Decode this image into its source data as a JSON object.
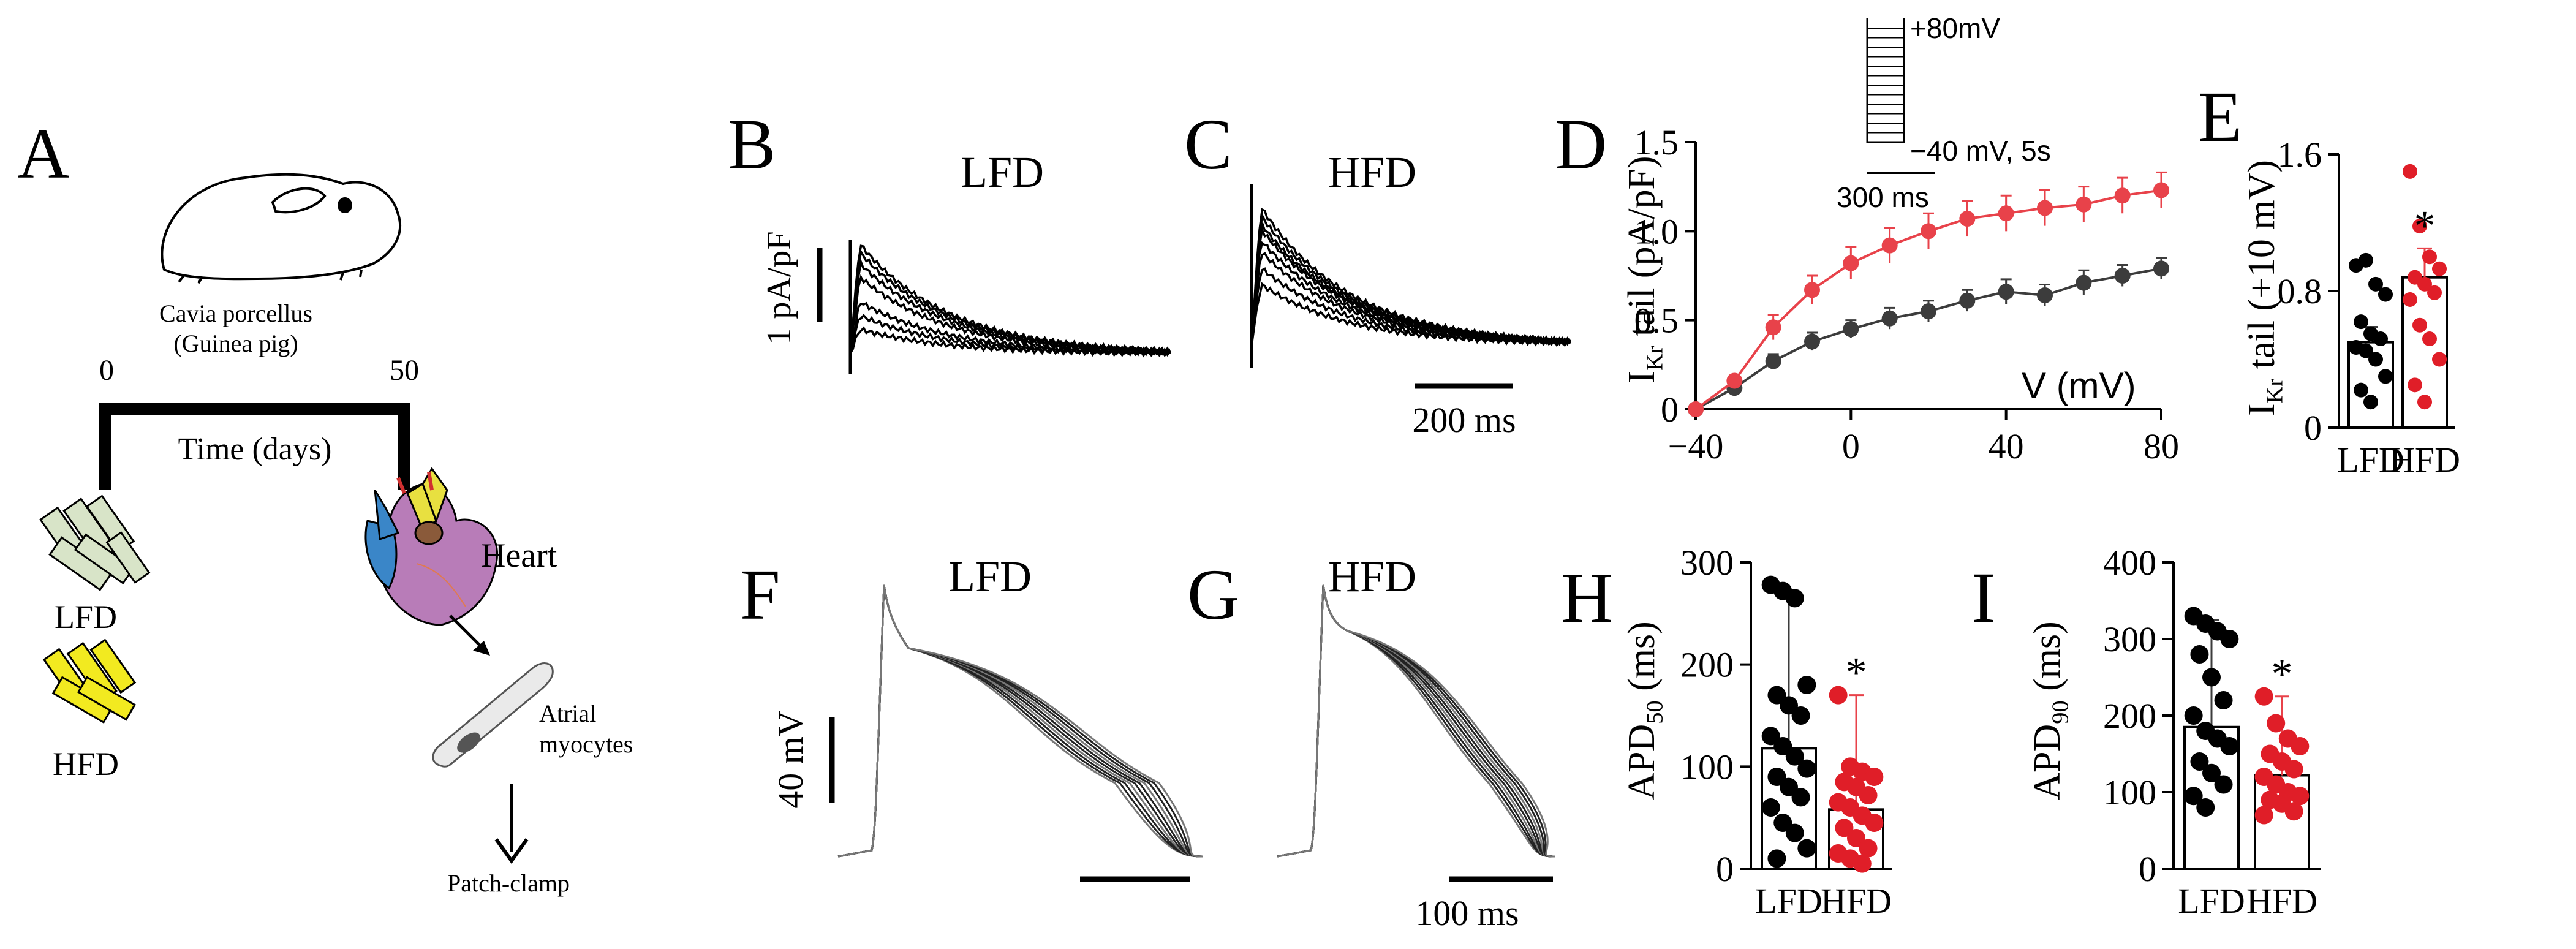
{
  "panel_a": {
    "letter": "A",
    "species_name": "Cavia porcellus",
    "species_common": "(Guinea pig)",
    "timeline_start": "0",
    "timeline_end": "50",
    "timeline_label": "Time (days)",
    "diet_low": "LFD",
    "diet_high": "HFD",
    "heart_label": "Heart",
    "cell_label_line1": "Atrial",
    "cell_label_line2": "myocytes",
    "method_label": "Patch-clamp",
    "colors": {
      "heart_blue": "#3a86c8",
      "heart_yellow": "#e8e040",
      "heart_pink": "#b87cb8",
      "heart_brown": "#8a5a3a",
      "chow_green": "#d8e4c8",
      "chow_yellow": "#f2ea20"
    }
  },
  "current_traces": {
    "panel_b": {
      "letter": "B",
      "title": "LFD"
    },
    "panel_c": {
      "letter": "C",
      "title": "HFD"
    },
    "scale_y_label": "1 pA/pF",
    "scale_x_label": "200 ms"
  },
  "ap_traces": {
    "panel_f": {
      "letter": "F",
      "title": "LFD"
    },
    "panel_g": {
      "letter": "G",
      "title": "HFD"
    },
    "scale_y_label": "40 mV",
    "scale_x_label": "100 ms"
  },
  "protocol_inset": {
    "top_label": "+80mV",
    "hold_label": "−40 mV, 5s",
    "time_label": "300 ms"
  },
  "colors": {
    "lfd": "#3c3c3c",
    "hfd": "#e8424a",
    "hfd_dot": "#e01e28",
    "ink": "#000000"
  },
  "chart_data": [
    {
      "panel": "D",
      "type": "line",
      "title": "",
      "ylabel_main": "I",
      "ylabel_sub": "Kr",
      "ylabel_rest": " tail (pA/pF)",
      "xlabel": "V (mV)",
      "xlim": [
        -40,
        80
      ],
      "ylim": [
        0,
        1.5
      ],
      "xticks": [
        "−40",
        "0",
        "40",
        "80"
      ],
      "xtick_values": [
        -40,
        0,
        40,
        80
      ],
      "yticks": [
        "0",
        "0.5",
        "1.0",
        "1.5"
      ],
      "ytick_values": [
        0,
        0.5,
        1.0,
        1.5
      ],
      "x": [
        -40,
        -30,
        -20,
        -10,
        0,
        10,
        20,
        30,
        40,
        50,
        60,
        70,
        80
      ],
      "series": [
        {
          "name": "LFD",
          "values": [
            0.0,
            0.12,
            0.27,
            0.38,
            0.45,
            0.51,
            0.55,
            0.61,
            0.66,
            0.64,
            0.71,
            0.75,
            0.79
          ],
          "errors": [
            0.0,
            0.03,
            0.04,
            0.05,
            0.05,
            0.06,
            0.06,
            0.06,
            0.07,
            0.06,
            0.07,
            0.06,
            0.06
          ]
        },
        {
          "name": "HFD",
          "values": [
            0.0,
            0.16,
            0.46,
            0.67,
            0.82,
            0.92,
            1.0,
            1.07,
            1.1,
            1.13,
            1.15,
            1.2,
            1.23
          ],
          "errors": [
            0.0,
            0.03,
            0.07,
            0.08,
            0.09,
            0.1,
            0.1,
            0.1,
            0.1,
            0.1,
            0.1,
            0.1,
            0.1
          ]
        }
      ]
    },
    {
      "panel": "E",
      "type": "bar",
      "ylabel_main": "I",
      "ylabel_sub": "Kr",
      "ylabel_rest": " tail (+10 mV)",
      "categories": [
        "LFD",
        "HFD"
      ],
      "values": [
        0.5,
        0.88
      ],
      "errors": [
        0.09,
        0.17
      ],
      "points": [
        [
          0.95,
          0.98,
          0.84,
          0.78,
          0.62,
          0.55,
          0.52,
          0.47,
          0.45,
          0.4,
          0.3,
          0.22,
          0.15
        ],
        [
          1.5,
          1.18,
          1.0,
          0.93,
          0.88,
          0.84,
          0.79,
          0.75,
          0.6,
          0.52,
          0.4,
          0.25,
          0.15
        ]
      ],
      "significance": [
        "",
        "*"
      ],
      "ylim": [
        0,
        1.6
      ],
      "yticks": [
        "0",
        "0.8",
        "1.6"
      ],
      "ytick_values": [
        0,
        0.8,
        1.6
      ]
    },
    {
      "panel": "H",
      "type": "bar",
      "ylabel_main": "APD",
      "ylabel_sub": "50",
      "ylabel_rest": " (ms)",
      "categories": [
        "LFD",
        "HFD"
      ],
      "values": [
        118,
        58
      ],
      "errors": [
        155,
        112
      ],
      "points": [
        [
          278,
          272,
          265,
          180,
          170,
          160,
          150,
          130,
          120,
          110,
          98,
          90,
          80,
          70,
          60,
          45,
          35,
          20,
          10
        ],
        [
          170,
          100,
          95,
          90,
          85,
          80,
          72,
          65,
          60,
          52,
          45,
          40,
          30,
          20,
          15,
          10,
          5
        ]
      ],
      "significance": [
        "",
        "*"
      ],
      "ylim": [
        0,
        300
      ],
      "yticks": [
        "0",
        "100",
        "200",
        "300"
      ],
      "ytick_values": [
        0,
        100,
        200,
        300
      ]
    },
    {
      "panel": "I",
      "type": "bar",
      "ylabel_main": "APD",
      "ylabel_sub": "90",
      "ylabel_rest": " (ms)",
      "categories": [
        "LFD",
        "HFD"
      ],
      "values": [
        185,
        122
      ],
      "errors": [
        140,
        103
      ],
      "points": [
        [
          330,
          320,
          310,
          300,
          280,
          250,
          220,
          200,
          180,
          170,
          160,
          140,
          125,
          110,
          95,
          80
        ],
        [
          225,
          190,
          170,
          160,
          150,
          140,
          130,
          120,
          110,
          100,
          95,
          90,
          85,
          75,
          70
        ]
      ],
      "significance": [
        "",
        "*"
      ],
      "ylim": [
        0,
        400
      ],
      "yticks": [
        "0",
        "100",
        "200",
        "300",
        "400"
      ],
      "ytick_values": [
        0,
        100,
        200,
        300,
        400
      ]
    }
  ]
}
